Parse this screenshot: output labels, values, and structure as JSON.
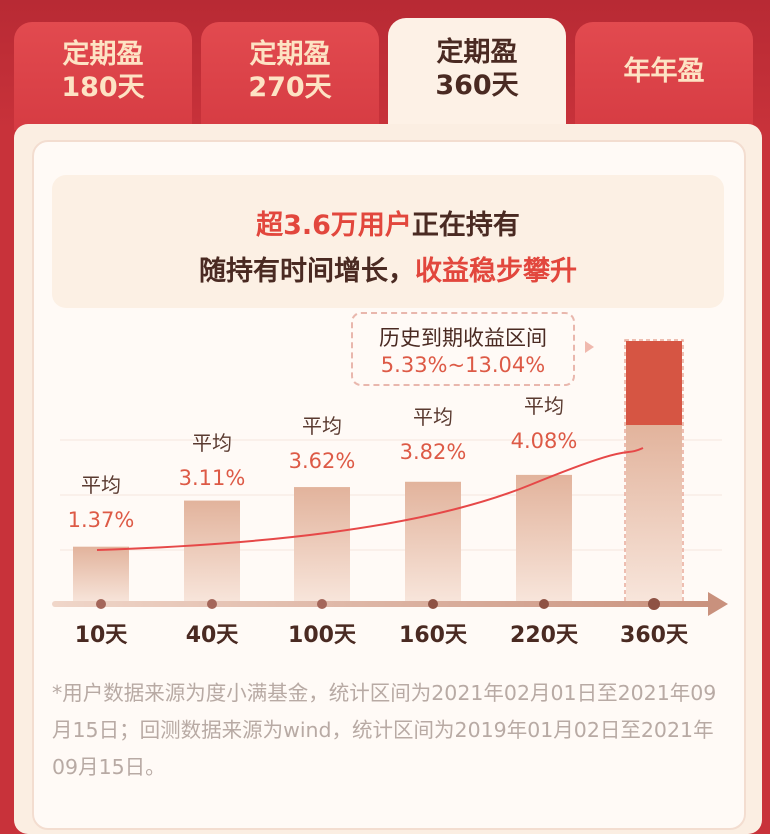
{
  "tabs": [
    {
      "line1": "定期盈",
      "line2": "180天",
      "active": false
    },
    {
      "line1": "定期盈",
      "line2": "270天",
      "active": false
    },
    {
      "line1": "定期盈",
      "line2": "360天",
      "active": true
    },
    {
      "line1": "年年盈",
      "line2": "",
      "active": false
    }
  ],
  "headline": {
    "line1_highlight": "超3.6万用户",
    "line1_rest": "正在持有",
    "line2_rest": "随持有时间增长，",
    "line2_highlight": "收益稳步攀升"
  },
  "range_box": {
    "title": "历史到期收益区间",
    "value": "5.33%~13.04%"
  },
  "colors": {
    "accent": "#e2473d",
    "bar": "#e3b7a1",
    "highlight_bar": "#d65543",
    "trend_line": "#e64848",
    "tab_red": "#d63c43"
  },
  "chart_data": {
    "type": "bar",
    "categories": [
      "10天",
      "40天",
      "100天",
      "160天",
      "220天",
      "360天"
    ],
    "value_prefix": "平均",
    "values": [
      1.37,
      3.11,
      3.62,
      3.82,
      4.08,
      null
    ],
    "value_labels": [
      "1.37%",
      "3.11%",
      "3.62%",
      "3.82%",
      "4.08%",
      ""
    ],
    "range_360": [
      5.33,
      13.04
    ],
    "ylim": [
      0,
      14
    ],
    "trend_line": true
  },
  "footnote": "*用户数据来源为度小满基金，统计区间为2021年02月01日至2021年09月15日；回测数据来源为wind，统计区间为2019年01月02日至2021年09月15日。"
}
